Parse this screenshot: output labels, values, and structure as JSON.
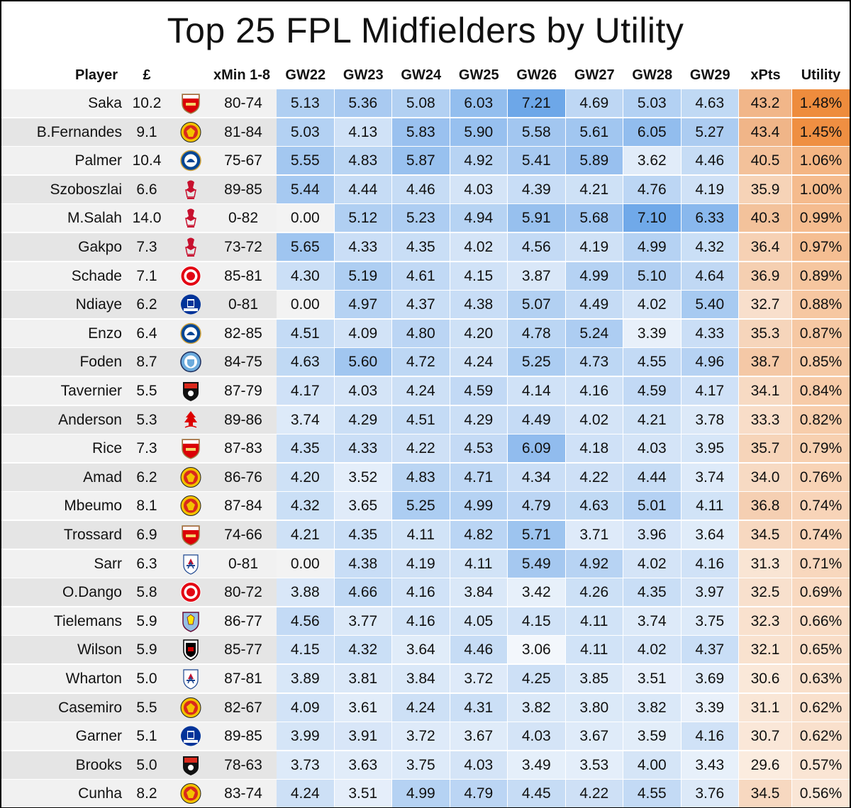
{
  "chart_data": {
    "type": "table",
    "title": "Top 25 FPL Midfielders by Utility",
    "columns": [
      "Player",
      "£",
      "",
      "xMin 1-8",
      "GW22",
      "GW23",
      "GW24",
      "GW25",
      "GW26",
      "GW27",
      "GW28",
      "GW29",
      "xPts",
      "Utility"
    ],
    "rows": [
      {
        "player": "Saka",
        "price": "10.2",
        "team_icon": "arsenal-crest-icon",
        "xmin": "80-74",
        "gw": [
          "5.13",
          "5.36",
          "5.08",
          "6.03",
          "7.21",
          "4.69",
          "5.03",
          "4.63"
        ],
        "xpts": "43.2",
        "utility": "1.48%"
      },
      {
        "player": "B.Fernandes",
        "price": "9.1",
        "team_icon": "man-utd-crest-icon",
        "xmin": "81-84",
        "gw": [
          "5.03",
          "4.13",
          "5.83",
          "5.90",
          "5.58",
          "5.61",
          "6.05",
          "5.27"
        ],
        "xpts": "43.4",
        "utility": "1.45%"
      },
      {
        "player": "Palmer",
        "price": "10.4",
        "team_icon": "chelsea-crest-icon",
        "xmin": "75-67",
        "gw": [
          "5.55",
          "4.83",
          "5.87",
          "4.92",
          "5.41",
          "5.89",
          "3.62",
          "4.46"
        ],
        "xpts": "40.5",
        "utility": "1.06%"
      },
      {
        "player": "Szoboszlai",
        "price": "6.6",
        "team_icon": "liverpool-crest-icon",
        "xmin": "89-85",
        "gw": [
          "5.44",
          "4.44",
          "4.46",
          "4.03",
          "4.39",
          "4.21",
          "4.76",
          "4.19"
        ],
        "xpts": "35.9",
        "utility": "1.00%"
      },
      {
        "player": "M.Salah",
        "price": "14.0",
        "team_icon": "liverpool-crest-icon",
        "xmin": "0-82",
        "gw": [
          "0.00",
          "5.12",
          "5.23",
          "4.94",
          "5.91",
          "5.68",
          "7.10",
          "6.33"
        ],
        "xpts": "40.3",
        "utility": "0.99%"
      },
      {
        "player": "Gakpo",
        "price": "7.3",
        "team_icon": "liverpool-crest-icon",
        "xmin": "73-72",
        "gw": [
          "5.65",
          "4.33",
          "4.35",
          "4.02",
          "4.56",
          "4.19",
          "4.99",
          "4.32"
        ],
        "xpts": "36.4",
        "utility": "0.97%"
      },
      {
        "player": "Schade",
        "price": "7.1",
        "team_icon": "brentford-crest-icon",
        "xmin": "85-81",
        "gw": [
          "4.30",
          "5.19",
          "4.61",
          "4.15",
          "3.87",
          "4.99",
          "5.10",
          "4.64"
        ],
        "xpts": "36.9",
        "utility": "0.89%"
      },
      {
        "player": "Ndiaye",
        "price": "6.2",
        "team_icon": "everton-crest-icon",
        "xmin": "0-81",
        "gw": [
          "0.00",
          "4.97",
          "4.37",
          "4.38",
          "5.07",
          "4.49",
          "4.02",
          "5.40"
        ],
        "xpts": "32.7",
        "utility": "0.88%"
      },
      {
        "player": "Enzo",
        "price": "6.4",
        "team_icon": "chelsea-crest-icon",
        "xmin": "82-85",
        "gw": [
          "4.51",
          "4.09",
          "4.80",
          "4.20",
          "4.78",
          "5.24",
          "3.39",
          "4.33"
        ],
        "xpts": "35.3",
        "utility": "0.87%"
      },
      {
        "player": "Foden",
        "price": "8.7",
        "team_icon": "man-city-crest-icon",
        "xmin": "84-75",
        "gw": [
          "4.63",
          "5.60",
          "4.72",
          "4.24",
          "5.25",
          "4.73",
          "4.55",
          "4.96"
        ],
        "xpts": "38.7",
        "utility": "0.85%"
      },
      {
        "player": "Tavernier",
        "price": "5.5",
        "team_icon": "bournemouth-crest-icon",
        "xmin": "87-79",
        "gw": [
          "4.17",
          "4.03",
          "4.24",
          "4.59",
          "4.14",
          "4.16",
          "4.59",
          "4.17"
        ],
        "xpts": "34.1",
        "utility": "0.84%"
      },
      {
        "player": "Anderson",
        "price": "5.3",
        "team_icon": "nottingham-forest-crest-icon",
        "xmin": "89-86",
        "gw": [
          "3.74",
          "4.29",
          "4.51",
          "4.29",
          "4.49",
          "4.02",
          "4.21",
          "3.78"
        ],
        "xpts": "33.3",
        "utility": "0.82%"
      },
      {
        "player": "Rice",
        "price": "7.3",
        "team_icon": "arsenal-crest-icon",
        "xmin": "87-83",
        "gw": [
          "4.35",
          "4.33",
          "4.22",
          "4.53",
          "6.09",
          "4.18",
          "4.03",
          "3.95"
        ],
        "xpts": "35.7",
        "utility": "0.79%"
      },
      {
        "player": "Amad",
        "price": "6.2",
        "team_icon": "man-utd-crest-icon",
        "xmin": "86-76",
        "gw": [
          "4.20",
          "3.52",
          "4.83",
          "4.71",
          "4.34",
          "4.22",
          "4.44",
          "3.74"
        ],
        "xpts": "34.0",
        "utility": "0.76%"
      },
      {
        "player": "Mbeumo",
        "price": "8.1",
        "team_icon": "man-utd-crest-icon",
        "xmin": "87-84",
        "gw": [
          "4.32",
          "3.65",
          "5.25",
          "4.99",
          "4.79",
          "4.63",
          "5.01",
          "4.11"
        ],
        "xpts": "36.8",
        "utility": "0.74%"
      },
      {
        "player": "Trossard",
        "price": "6.9",
        "team_icon": "arsenal-crest-icon",
        "xmin": "74-66",
        "gw": [
          "4.21",
          "4.35",
          "4.11",
          "4.82",
          "5.71",
          "3.71",
          "3.96",
          "3.64"
        ],
        "xpts": "34.5",
        "utility": "0.74%"
      },
      {
        "player": "Sarr",
        "price": "6.3",
        "team_icon": "crystal-palace-crest-icon",
        "xmin": "0-81",
        "gw": [
          "0.00",
          "4.38",
          "4.19",
          "4.11",
          "5.49",
          "4.92",
          "4.02",
          "4.16"
        ],
        "xpts": "31.3",
        "utility": "0.71%"
      },
      {
        "player": "O.Dango",
        "price": "5.8",
        "team_icon": "brentford-crest-icon",
        "xmin": "80-72",
        "gw": [
          "3.88",
          "4.66",
          "4.16",
          "3.84",
          "3.42",
          "4.26",
          "4.35",
          "3.97"
        ],
        "xpts": "32.5",
        "utility": "0.69%"
      },
      {
        "player": "Tielemans",
        "price": "5.9",
        "team_icon": "aston-villa-crest-icon",
        "xmin": "86-77",
        "gw": [
          "4.56",
          "3.77",
          "4.16",
          "4.05",
          "4.15",
          "4.11",
          "3.74",
          "3.75"
        ],
        "xpts": "32.3",
        "utility": "0.66%"
      },
      {
        "player": "Wilson",
        "price": "5.9",
        "team_icon": "fulham-crest-icon",
        "xmin": "85-77",
        "gw": [
          "4.15",
          "4.32",
          "3.64",
          "4.46",
          "3.06",
          "4.11",
          "4.02",
          "4.37"
        ],
        "xpts": "32.1",
        "utility": "0.65%"
      },
      {
        "player": "Wharton",
        "price": "5.0",
        "team_icon": "crystal-palace-crest-icon",
        "xmin": "87-81",
        "gw": [
          "3.89",
          "3.81",
          "3.84",
          "3.72",
          "4.25",
          "3.85",
          "3.51",
          "3.69"
        ],
        "xpts": "30.6",
        "utility": "0.63%"
      },
      {
        "player": "Casemiro",
        "price": "5.5",
        "team_icon": "man-utd-crest-icon",
        "xmin": "82-67",
        "gw": [
          "4.09",
          "3.61",
          "4.24",
          "4.31",
          "3.82",
          "3.80",
          "3.82",
          "3.39"
        ],
        "xpts": "31.1",
        "utility": "0.62%"
      },
      {
        "player": "Garner",
        "price": "5.1",
        "team_icon": "everton-crest-icon",
        "xmin": "89-85",
        "gw": [
          "3.99",
          "3.91",
          "3.72",
          "3.67",
          "4.03",
          "3.67",
          "3.59",
          "4.16"
        ],
        "xpts": "30.7",
        "utility": "0.62%"
      },
      {
        "player": "Brooks",
        "price": "5.0",
        "team_icon": "bournemouth-crest-icon",
        "xmin": "78-63",
        "gw": [
          "3.73",
          "3.63",
          "3.75",
          "4.03",
          "3.49",
          "3.53",
          "4.00",
          "3.43"
        ],
        "xpts": "29.6",
        "utility": "0.57%"
      },
      {
        "player": "Cunha",
        "price": "8.2",
        "team_icon": "man-utd-crest-icon",
        "xmin": "83-74",
        "gw": [
          "4.24",
          "3.51",
          "4.99",
          "4.79",
          "4.45",
          "4.22",
          "4.55",
          "3.76"
        ],
        "xpts": "34.5",
        "utility": "0.56%"
      }
    ],
    "gw_color_scale": {
      "min": 3.0,
      "max": 7.3,
      "low_color": "#f5f8fc",
      "high_color": "#6aa5e8",
      "zero_color": "#f3f3f3"
    },
    "xpts_color_scale": {
      "min": 29.0,
      "max": 44.0,
      "low_color": "#fbeee3",
      "high_color": "#f0b384"
    },
    "utility_color_scale": {
      "min": 0.5,
      "max": 1.5,
      "low_color": "#fbece0",
      "high_color": "#ee8a3a"
    }
  }
}
